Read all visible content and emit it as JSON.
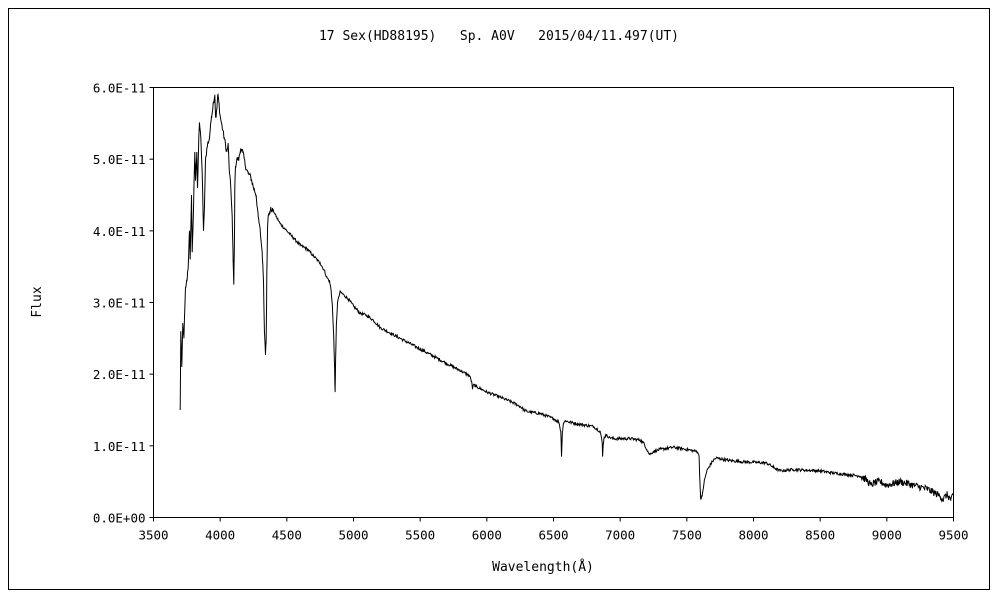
{
  "chart_data": {
    "type": "line",
    "title": "17 Sex(HD88195)   Sp. A0V   2015/04/11.497(UT)",
    "xlabel": "Wavelength(Å)",
    "ylabel": "Flux",
    "xlim": [
      3500,
      9500
    ],
    "ylim": [
      0,
      6e-11
    ],
    "x_ticks": [
      3500,
      4000,
      4500,
      5000,
      5500,
      6000,
      6500,
      7000,
      7500,
      8000,
      8500,
      9000,
      9500
    ],
    "x_tick_labels": [
      "3500",
      "4000",
      "4500",
      "5000",
      "5500",
      "6000",
      "6500",
      "7000",
      "7500",
      "8000",
      "8500",
      "9000",
      "9500"
    ],
    "y_ticks": [
      0,
      1e-11,
      2e-11,
      3e-11,
      4e-11,
      5e-11,
      6e-11
    ],
    "y_tick_labels": [
      "0.0E+00",
      "1.0E-11",
      "2.0E-11",
      "3.0E-11",
      "4.0E-11",
      "5.0E-11",
      "6.0E-11"
    ],
    "grid": false,
    "legend": "none",
    "line_color": "#000000",
    "series": [
      {
        "x": [
          3700,
          3705,
          3712,
          3720,
          3728,
          3740,
          3750,
          3760,
          3770,
          3775,
          3785,
          3790,
          3800,
          3810,
          3815,
          3825,
          3830,
          3840,
          3845,
          3855,
          3865,
          3875,
          3882,
          3890,
          3905,
          3920,
          3935,
          3950,
          3960,
          3965,
          3970,
          3975,
          3982,
          3990,
          4000,
          4010,
          4020,
          4030,
          4040,
          4050,
          4060,
          4070,
          4080,
          4090,
          4097,
          4102,
          4106,
          4110,
          4115,
          4125,
          4140,
          4155,
          4170,
          4190,
          4210,
          4230,
          4250,
          4270,
          4285,
          4300,
          4315,
          4325,
          4332,
          4340,
          4345,
          4350,
          4355,
          4360,
          4370,
          4380,
          4400,
          4420,
          4450,
          4500,
          4550,
          4600,
          4650,
          4700,
          4750,
          4780,
          4800,
          4820,
          4830,
          4840,
          4850,
          4858,
          4862,
          4866,
          4872,
          4880,
          4900,
          4930,
          4960,
          5000,
          5050,
          5100,
          5150,
          5200,
          5300,
          5400,
          5500,
          5600,
          5700,
          5800,
          5870,
          5885,
          5893,
          5900,
          5920,
          6000,
          6100,
          6200,
          6250,
          6280,
          6300,
          6400,
          6500,
          6540,
          6555,
          6560,
          6563,
          6567,
          6575,
          6590,
          6620,
          6700,
          6800,
          6850,
          6865,
          6868,
          6872,
          6878,
          6890,
          6920,
          6950,
          7000,
          7080,
          7150,
          7180,
          7200,
          7220,
          7250,
          7300,
          7400,
          7500,
          7550,
          7580,
          7592,
          7600,
          7605,
          7615,
          7630,
          7650,
          7680,
          7700,
          7720,
          7750,
          7800,
          7900,
          8000,
          8100,
          8150,
          8200,
          8300,
          8400,
          8500,
          8600,
          8700,
          8800,
          8850,
          8880,
          8900,
          8950,
          9000,
          9100,
          9200,
          9300,
          9350,
          9400,
          9420,
          9450,
          9480,
          9500
        ],
        "y": [
          1.5e-11,
          2.6e-11,
          2.1e-11,
          2.7e-11,
          2.5e-11,
          3.2e-11,
          3.3e-11,
          3.5e-11,
          4e-11,
          3.6e-11,
          4.5e-11,
          3.7e-11,
          4.3e-11,
          5.1e-11,
          4.7e-11,
          5.1e-11,
          4.6e-11,
          5.3e-11,
          5.5e-11,
          5.3e-11,
          4.8e-11,
          4e-11,
          4.3e-11,
          5e-11,
          5.2e-11,
          5.3e-11,
          5.6e-11,
          5.8e-11,
          5.9e-11,
          5.6e-11,
          5.6e-11,
          5.7e-11,
          5.9e-11,
          5.8e-11,
          5.6e-11,
          5.5e-11,
          5.4e-11,
          5.3e-11,
          5.2e-11,
          5.1e-11,
          5.2e-11,
          4.8e-11,
          4.6e-11,
          4.2e-11,
          3.6e-11,
          3.25e-11,
          3.7e-11,
          4.6e-11,
          4.9e-11,
          5e-11,
          5e-11,
          5.15e-11,
          5.1e-11,
          4.9e-11,
          4.8e-11,
          4.75e-11,
          4.6e-11,
          4.5e-11,
          4.2e-11,
          4e-11,
          3.7e-11,
          3.3e-11,
          2.6e-11,
          2.3e-11,
          2.5e-11,
          3.4e-11,
          4e-11,
          4.2e-11,
          4.25e-11,
          4.3e-11,
          4.28e-11,
          4.2e-11,
          4.1e-11,
          4e-11,
          3.9e-11,
          3.8e-11,
          3.75e-11,
          3.65e-11,
          3.55e-11,
          3.45e-11,
          3.35e-11,
          3.3e-11,
          3.2e-11,
          3e-11,
          2.6e-11,
          2.1e-11,
          1.75e-11,
          2.2e-11,
          2.7e-11,
          3e-11,
          3.15e-11,
          3.1e-11,
          3.05e-11,
          2.95e-11,
          2.85e-11,
          2.82e-11,
          2.75e-11,
          2.65e-11,
          2.55e-11,
          2.45e-11,
          2.35e-11,
          2.25e-11,
          2.15e-11,
          2.05e-11,
          1.98e-11,
          1.9e-11,
          1.8e-11,
          1.85e-11,
          1.83e-11,
          1.75e-11,
          1.68e-11,
          1.6e-11,
          1.55e-11,
          1.5e-11,
          1.48e-11,
          1.45e-11,
          1.38e-11,
          1.33e-11,
          1.2e-11,
          8.5e-12,
          1e-11,
          1.2e-11,
          1.32e-11,
          1.35e-11,
          1.33e-11,
          1.3e-11,
          1.27e-11,
          1.2e-11,
          1.05e-11,
          8.5e-12,
          1e-11,
          1.1e-11,
          1.15e-11,
          1.12e-11,
          1.1e-11,
          1.1e-11,
          1.1e-11,
          1.08e-11,
          1.03e-11,
          9.5e-12,
          8.8e-12,
          9.2e-12,
          9.5e-12,
          9.8e-12,
          9.5e-12,
          9.3e-12,
          9.2e-12,
          8.5e-12,
          4e-12,
          2.5e-12,
          3e-12,
          5e-12,
          6.5e-12,
          7.5e-12,
          8e-12,
          8.3e-12,
          8.2e-12,
          8e-12,
          7.8e-12,
          7.7e-12,
          7.6e-12,
          7e-12,
          6.5e-12,
          6.7e-12,
          6.6e-12,
          6.5e-12,
          6.2e-12,
          6e-12,
          5.8e-12,
          5.2e-12,
          4.5e-12,
          4.8e-12,
          5e-12,
          4.5e-12,
          5e-12,
          4.5e-12,
          4e-12,
          3.5e-12,
          3e-12,
          2.5e-12,
          3.2e-12,
          2.5e-12,
          3e-12
        ]
      }
    ]
  }
}
